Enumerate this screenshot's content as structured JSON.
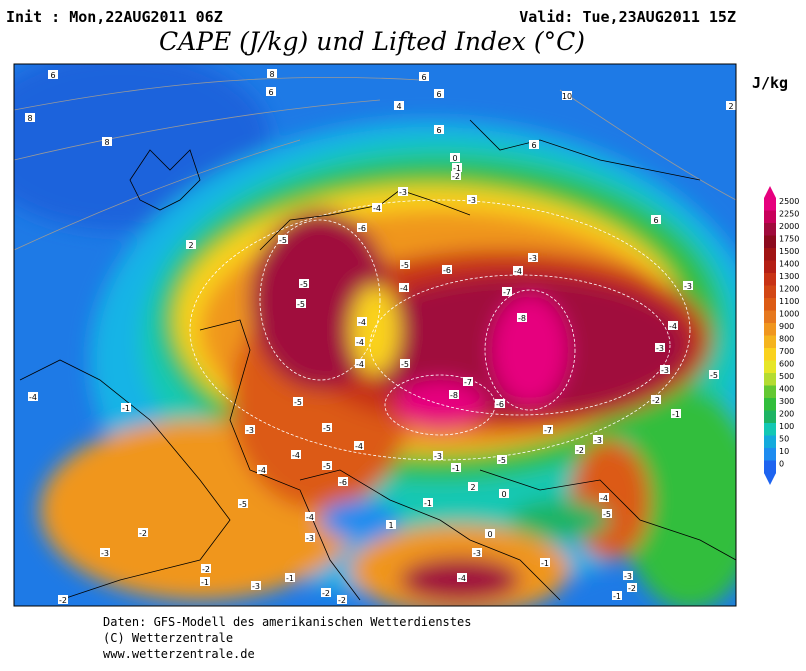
{
  "header": {
    "init": "Init : Mon,22AUG2011 06Z",
    "valid": "Valid: Tue,23AUG2011 15Z",
    "title": "CAPE (J/kg) und Lifted Index (°C)"
  },
  "map": {
    "contour_labels": [
      "6",
      "8",
      "6",
      "6",
      "6",
      "10",
      "2",
      "4",
      "8",
      "6",
      "8",
      "6",
      "0",
      "-1",
      "-2",
      "-3",
      "-3",
      "-4",
      "6",
      "2",
      "-6",
      "-5",
      "-3",
      "-5",
      "-6",
      "-4",
      "-5",
      "-4",
      "-7",
      "-3",
      "-5",
      "-8",
      "-4",
      "-4",
      "-4",
      "-3",
      "-5",
      "-4",
      "-3",
      "-7",
      "-8",
      "-6",
      "-5",
      "-5",
      "-1",
      "-4",
      "-2",
      "-1",
      "-3",
      "-7",
      "-5",
      "-3",
      "-2",
      "-3",
      "-4",
      "-4",
      "-5",
      "-1",
      "-4",
      "-5",
      "-6",
      "2",
      "0",
      "-5",
      "-4",
      "-5",
      "-1",
      "-4",
      "1",
      "-2",
      "0",
      "-3",
      "-3",
      "-3",
      "-2",
      "-4",
      "-1",
      "-1",
      "-3",
      "-3",
      "-2",
      "-2",
      "-2",
      "-2",
      "-1",
      "-1"
    ]
  },
  "legend": {
    "unit": "J/kg",
    "levels": [
      2500,
      2250,
      2000,
      1750,
      1500,
      1400,
      1300,
      1200,
      1100,
      1000,
      900,
      800,
      700,
      600,
      500,
      400,
      300,
      200,
      100,
      50,
      10,
      0
    ],
    "colors": [
      "#e6007e",
      "#c8005a",
      "#a00a3c",
      "#8c0a1e",
      "#a01414",
      "#b41e14",
      "#c83214",
      "#d24614",
      "#dc5a14",
      "#e6781e",
      "#f0961e",
      "#f5b41e",
      "#fad21e",
      "#e6e628",
      "#b4dc32",
      "#64c832",
      "#32be3c",
      "#1eb464",
      "#14c8b4",
      "#14aadc",
      "#1e8cf0",
      "#1e64f0"
    ]
  },
  "footer": {
    "lines": [
      "Daten: GFS-Modell des amerikanischen Wetterdienstes",
      "(C) Wetterzentrale",
      "www.wetterzentrale.de"
    ]
  }
}
